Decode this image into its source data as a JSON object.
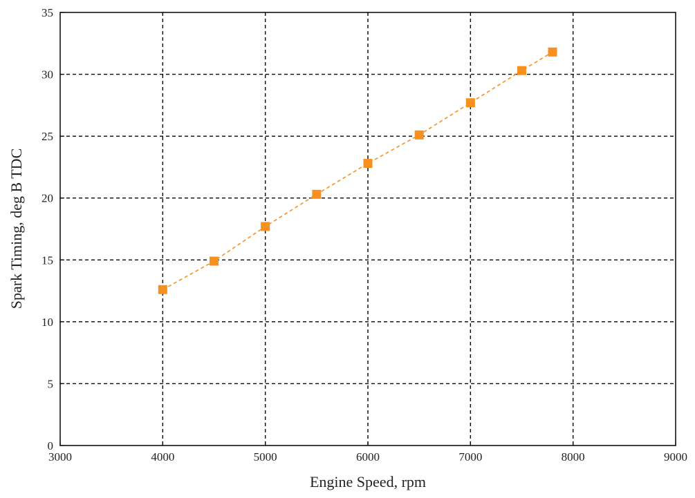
{
  "chart_data": {
    "type": "line",
    "title": "",
    "xlabel": "Engine Speed, rpm",
    "ylabel": "Spark Timing, deg B TDC",
    "xlim": [
      3000,
      9000
    ],
    "ylim": [
      0,
      35
    ],
    "x_ticks": [
      3000,
      4000,
      5000,
      6000,
      7000,
      8000,
      9000
    ],
    "y_ticks": [
      0,
      5,
      10,
      15,
      20,
      25,
      30,
      35
    ],
    "x_tick_labels": [
      "3000",
      "4000",
      "5000",
      "6000",
      "7000",
      "8000",
      "9000"
    ],
    "y_tick_labels": [
      "0",
      "5",
      "10",
      "15",
      "20",
      "25",
      "30",
      "35"
    ],
    "grid": true,
    "grid_style": "dashed",
    "series": [
      {
        "color": "#f7901e",
        "marker": "square",
        "line_style": "dashed",
        "x": [
          4000,
          4500,
          5000,
          5500,
          6000,
          6500,
          7000,
          7500,
          7800
        ],
        "y": [
          12.6,
          14.9,
          17.7,
          20.3,
          22.8,
          25.1,
          27.7,
          30.3,
          31.8
        ]
      }
    ]
  },
  "colors": {
    "series": "#f7901e",
    "axis": "#000000",
    "grid": "#000000",
    "text": "#222222"
  }
}
